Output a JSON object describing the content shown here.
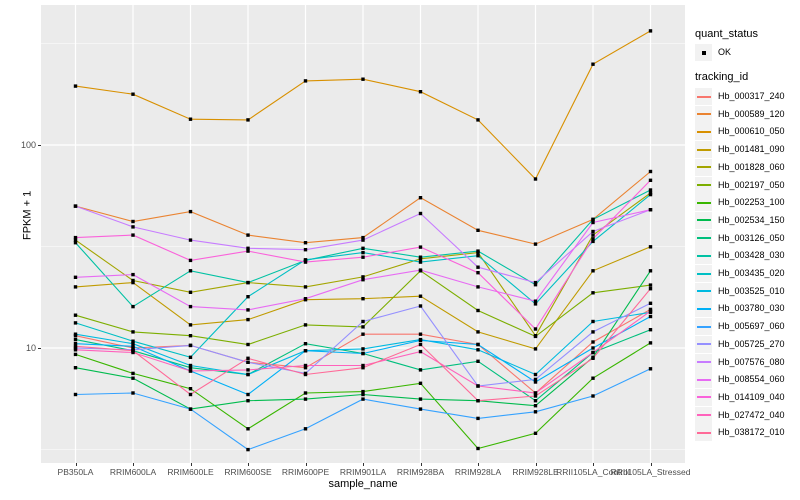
{
  "chart_data": {
    "type": "line",
    "title": "",
    "xlabel": "sample_name",
    "ylabel": "FPKM + 1",
    "y_scale": "log10",
    "ylim": [
      2.7,
      490
    ],
    "y_major_ticks": [
      10,
      100
    ],
    "y_minor_ticks": [
      3.162,
      31.62,
      316.2
    ],
    "grid": "on",
    "legend_position": "right",
    "panel_background": "#EBEBEB",
    "grid_color": "#FFFFFF",
    "point_shape": "filled-square",
    "point_color": "#000000",
    "x_categories": [
      "PB350LA",
      "RRIM600LA",
      "RRIM600LE",
      "RRIM600SE",
      "RRIM600PE",
      "RRIM901LA",
      "RRIM928BA",
      "RRIM928LA",
      "RRIM928LE",
      "RRII105LA_Control",
      "RRII105LA_Stressed"
    ],
    "legend": {
      "quant_status_title": "quant_status",
      "quant_status_items": [
        "OK"
      ],
      "series_title": "tracking_id"
    },
    "series": [
      {
        "name": "Hb_000317_240",
        "color": "#F8766D",
        "values": [
          11.5,
          10.0,
          10.3,
          8.5,
          8.0,
          11.7,
          11.7,
          10.4,
          6.0,
          10.7,
          15.5
        ]
      },
      {
        "name": "Hb_000589_120",
        "color": "#EA8331",
        "values": [
          50,
          42,
          47,
          36,
          33,
          35,
          55,
          38,
          32.5,
          43,
          74
        ]
      },
      {
        "name": "Hb_000610_050",
        "color": "#D89000",
        "values": [
          195,
          178,
          134,
          133,
          207,
          211,
          183,
          133,
          68,
          250,
          365
        ]
      },
      {
        "name": "Hb_001481_090",
        "color": "#C09B00",
        "values": [
          20,
          21,
          13,
          13.8,
          17.3,
          17.5,
          18,
          12,
          9.9,
          24,
          31.5
        ]
      },
      {
        "name": "Hb_001828_060",
        "color": "#A3A500",
        "values": [
          34,
          21.5,
          18.8,
          21,
          20,
          22.4,
          27.5,
          29.5,
          11.5,
          36,
          58
        ]
      },
      {
        "name": "Hb_002197_050",
        "color": "#7CAE00",
        "values": [
          14.5,
          12,
          11.5,
          10.4,
          13,
          12.7,
          24,
          15.3,
          11.4,
          18.7,
          20.4
        ]
      },
      {
        "name": "Hb_002253_100",
        "color": "#39B600",
        "values": [
          9.3,
          7.5,
          6.3,
          4.0,
          6.0,
          6.1,
          6.7,
          3.2,
          3.8,
          7.1,
          10.6
        ]
      },
      {
        "name": "Hb_002534_150",
        "color": "#00BB4E",
        "values": [
          8.0,
          7.1,
          5.0,
          5.5,
          5.6,
          5.9,
          5.6,
          5.5,
          5.2,
          9.0,
          24
        ]
      },
      {
        "name": "Hb_003126_050",
        "color": "#00BF7D",
        "values": [
          11.0,
          9.7,
          8.0,
          7.4,
          10.5,
          9.4,
          7.8,
          8.6,
          5.5,
          9.5,
          12.3
        ]
      },
      {
        "name": "Hb_003428_030",
        "color": "#00C1A3",
        "values": [
          33,
          16,
          24,
          21,
          27,
          31,
          28,
          30,
          20.5,
          43,
          60
        ]
      },
      {
        "name": "Hb_003435_020",
        "color": "#00BFC4",
        "values": [
          13.3,
          10.8,
          9.0,
          17.9,
          27.2,
          29.5,
          26.5,
          28.5,
          16.5,
          33.5,
          57
        ]
      },
      {
        "name": "Hb_003525_010",
        "color": "#00BAE0",
        "values": [
          11.7,
          10.5,
          8.2,
          7.4,
          9.7,
          9.9,
          11,
          9.8,
          7.4,
          13.5,
          15
        ]
      },
      {
        "name": "Hb_003780_030",
        "color": "#00B0F6",
        "values": [
          10.5,
          10.2,
          7.7,
          5.9,
          9.7,
          9.4,
          10.9,
          10.4,
          6.8,
          10.0,
          14.3
        ]
      },
      {
        "name": "Hb_005697_060",
        "color": "#35A2FF",
        "values": [
          5.9,
          6.0,
          5.0,
          3.16,
          4.0,
          5.6,
          5.0,
          4.5,
          4.85,
          5.8,
          7.9
        ]
      },
      {
        "name": "Hb_005725_270",
        "color": "#9590FF",
        "values": [
          10.0,
          9.8,
          10.3,
          8.5,
          7.5,
          13.5,
          16.1,
          6.5,
          7.0,
          12.0,
          16.6
        ]
      },
      {
        "name": "Hb_007576_080",
        "color": "#C77CFF",
        "values": [
          50,
          39.5,
          34,
          31,
          30.5,
          34,
          46,
          25,
          21,
          37.5,
          48
        ]
      },
      {
        "name": "Hb_008554_060",
        "color": "#E76BF3",
        "values": [
          22.3,
          23,
          16,
          15.4,
          17.5,
          21.7,
          24.2,
          20,
          17,
          41.5,
          48
        ]
      },
      {
        "name": "Hb_014109_040",
        "color": "#FA62DB",
        "values": [
          35,
          36,
          27,
          30,
          26.5,
          28,
          31.4,
          23.5,
          12.4,
          34.5,
          67
        ]
      },
      {
        "name": "Hb_027472_040",
        "color": "#FF62BC",
        "values": [
          9.8,
          9.5,
          7.7,
          7.8,
          8.2,
          8.2,
          9.6,
          6.5,
          6.0,
          9.5,
          15.2
        ]
      },
      {
        "name": "Hb_038172_010",
        "color": "#FF6A98",
        "values": [
          10.2,
          9.7,
          5.9,
          8.9,
          7.4,
          8.0,
          10.4,
          5.5,
          5.8,
          8.9,
          19.6
        ]
      }
    ]
  }
}
